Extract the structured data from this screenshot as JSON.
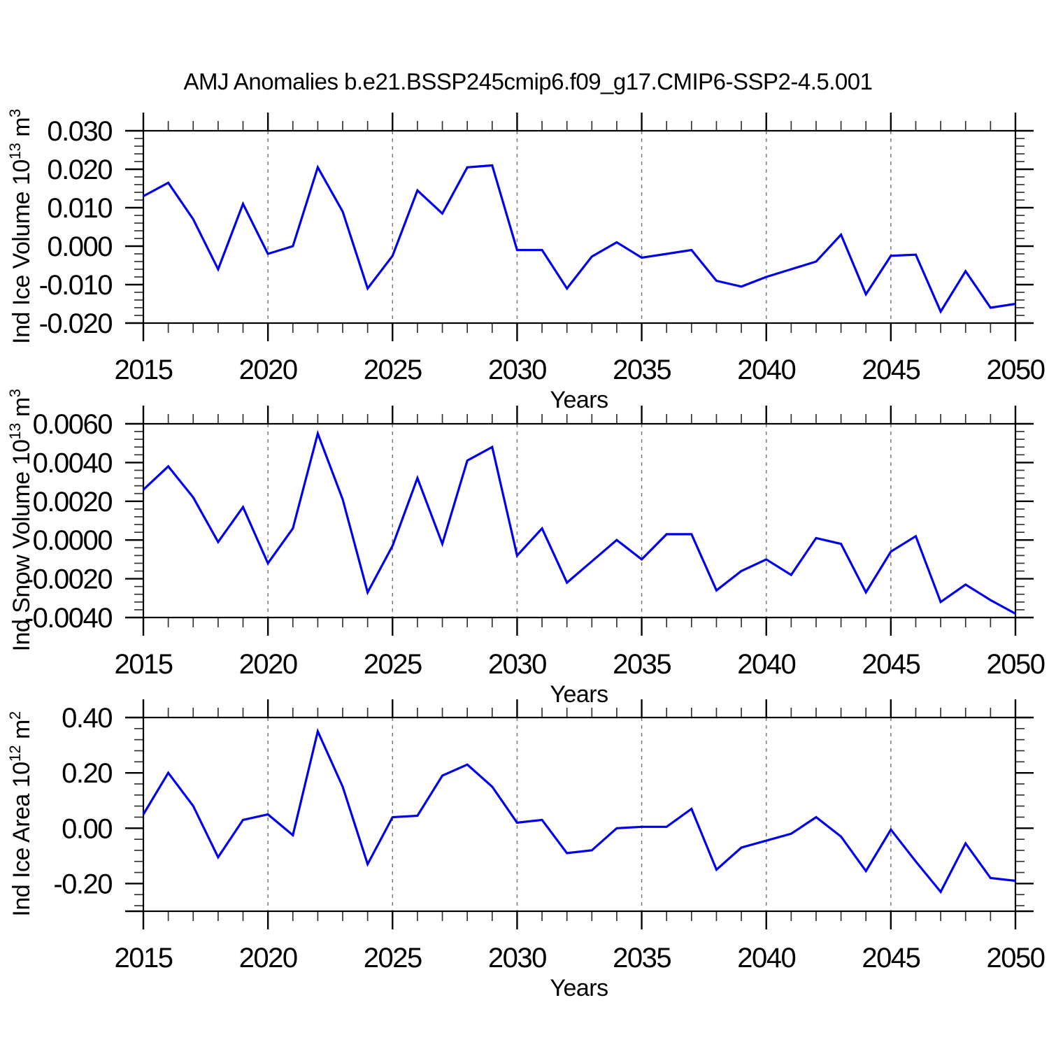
{
  "title": "AMJ Anomalies b.e21.BSSP245cmip6.f09_g17.CMIP6-SSP2-4.5.001",
  "line_color": "#0000EE",
  "grid_color": "#7a7a7a",
  "chart_data": [
    {
      "type": "line",
      "ylabel": {
        "base": "Ind Ice Volume 10",
        "sup": "13",
        "unit": " m",
        "unit_sup": "3"
      },
      "xlabel": "Years",
      "xlim": [
        2015,
        2050
      ],
      "xticks": [
        2015,
        2020,
        2025,
        2030,
        2035,
        2040,
        2045,
        2050
      ],
      "xtick_labels": [
        "2015",
        "2020",
        "2025",
        "2030",
        "2035",
        "2040",
        "2045",
        "2050"
      ],
      "grid_x": [
        2020,
        2025,
        2030,
        2035,
        2040,
        2045
      ],
      "xminor_step": 1,
      "ylim": [
        -0.02,
        0.03
      ],
      "ytick_values": [
        0.03,
        0.02,
        0.01,
        0.0,
        -0.01,
        -0.02
      ],
      "ytick_labels": [
        "0.030",
        "0.020",
        "0.010",
        "0.000",
        "-0.010",
        "-0.020"
      ],
      "yminor_step": 0.002,
      "x": [
        2015,
        2016,
        2017,
        2018,
        2019,
        2020,
        2021,
        2022,
        2023,
        2024,
        2025,
        2026,
        2027,
        2028,
        2029,
        2030,
        2031,
        2032,
        2033,
        2034,
        2035,
        2036,
        2037,
        2038,
        2039,
        2040,
        2041,
        2042,
        2043,
        2044,
        2045,
        2046,
        2047,
        2048,
        2049,
        2050
      ],
      "values": [
        0.013,
        0.0165,
        0.007,
        -0.006,
        0.011,
        -0.002,
        0.0,
        0.0205,
        0.009,
        -0.011,
        -0.0025,
        0.0145,
        0.0085,
        0.0205,
        0.021,
        -0.001,
        -0.001,
        -0.011,
        -0.0027,
        0.001,
        -0.003,
        -0.002,
        -0.001,
        -0.009,
        -0.0105,
        -0.008,
        -0.006,
        -0.004,
        0.003,
        -0.0125,
        -0.0025,
        -0.0022,
        -0.017,
        -0.0065,
        -0.016,
        -0.015
      ]
    },
    {
      "type": "line",
      "ylabel": {
        "base": "Ind Snow Volume 10",
        "sup": "13",
        "unit": " m",
        "unit_sup": "3"
      },
      "xlabel": "Years",
      "xlim": [
        2015,
        2050
      ],
      "xticks": [
        2015,
        2020,
        2025,
        2030,
        2035,
        2040,
        2045,
        2050
      ],
      "xtick_labels": [
        "2015",
        "2020",
        "2025",
        "2030",
        "2035",
        "2040",
        "2045",
        "2050"
      ],
      "grid_x": [
        2020,
        2025,
        2030,
        2035,
        2040,
        2045
      ],
      "xminor_step": 1,
      "ylim": [
        -0.004,
        0.006
      ],
      "ytick_values": [
        0.006,
        0.004,
        0.002,
        0.0,
        -0.002,
        -0.004
      ],
      "ytick_labels": [
        "0.0060",
        "0.0040",
        "0.0020",
        "0.0000",
        "-0.0020",
        "-0.0040"
      ],
      "yminor_step": 0.0004,
      "x": [
        2015,
        2016,
        2017,
        2018,
        2019,
        2020,
        2021,
        2022,
        2023,
        2024,
        2025,
        2026,
        2027,
        2028,
        2029,
        2030,
        2031,
        2032,
        2033,
        2034,
        2035,
        2036,
        2037,
        2038,
        2039,
        2040,
        2041,
        2042,
        2043,
        2044,
        2045,
        2046,
        2047,
        2048,
        2049,
        2050
      ],
      "values": [
        0.0026,
        0.0038,
        0.0022,
        -0.0001,
        0.0017,
        -0.0012,
        0.0006,
        0.0055,
        0.0021,
        -0.0027,
        -0.0003,
        0.0032,
        -0.0002,
        0.0041,
        0.0048,
        -0.0008,
        0.0006,
        -0.0022,
        -0.0011,
        0.0,
        -0.001,
        0.0003,
        0.0003,
        -0.0026,
        -0.0016,
        -0.001,
        -0.0018,
        0.0001,
        -0.0002,
        -0.0027,
        -0.0006,
        0.0002,
        -0.0032,
        -0.0023,
        -0.0031,
        -0.0038
      ]
    },
    {
      "type": "line",
      "ylabel": {
        "base": "Ind Ice Area 10",
        "sup": "12",
        "unit": " m",
        "unit_sup": "2"
      },
      "xlabel": "Years",
      "xlim": [
        2015,
        2050
      ],
      "xticks": [
        2015,
        2020,
        2025,
        2030,
        2035,
        2040,
        2045,
        2050
      ],
      "xtick_labels": [
        "2015",
        "2020",
        "2025",
        "2030",
        "2035",
        "2040",
        "2045",
        "2050"
      ],
      "grid_x": [
        2020,
        2025,
        2030,
        2035,
        2040,
        2045
      ],
      "xminor_step": 1,
      "ylim": [
        -0.3,
        0.4
      ],
      "ytick_values": [
        0.4,
        0.2,
        0.0,
        -0.2
      ],
      "ytick_labels": [
        "0.40",
        "0.20",
        "0.00",
        "-0.20"
      ],
      "yminor_step": 0.04,
      "x": [
        2015,
        2016,
        2017,
        2018,
        2019,
        2020,
        2021,
        2022,
        2023,
        2024,
        2025,
        2026,
        2027,
        2028,
        2029,
        2030,
        2031,
        2032,
        2033,
        2034,
        2035,
        2036,
        2037,
        2038,
        2039,
        2040,
        2041,
        2042,
        2043,
        2044,
        2045,
        2046,
        2047,
        2048,
        2049,
        2050
      ],
      "values": [
        0.05,
        0.2,
        0.08,
        -0.105,
        0.03,
        0.05,
        -0.025,
        0.35,
        0.15,
        -0.13,
        0.04,
        0.045,
        0.19,
        0.23,
        0.15,
        0.02,
        0.03,
        -0.09,
        -0.08,
        0.0,
        0.005,
        0.005,
        0.07,
        -0.15,
        -0.07,
        -0.045,
        -0.02,
        0.04,
        -0.03,
        -0.155,
        -0.005,
        -0.12,
        -0.23,
        -0.055,
        -0.18,
        -0.19
      ]
    }
  ]
}
